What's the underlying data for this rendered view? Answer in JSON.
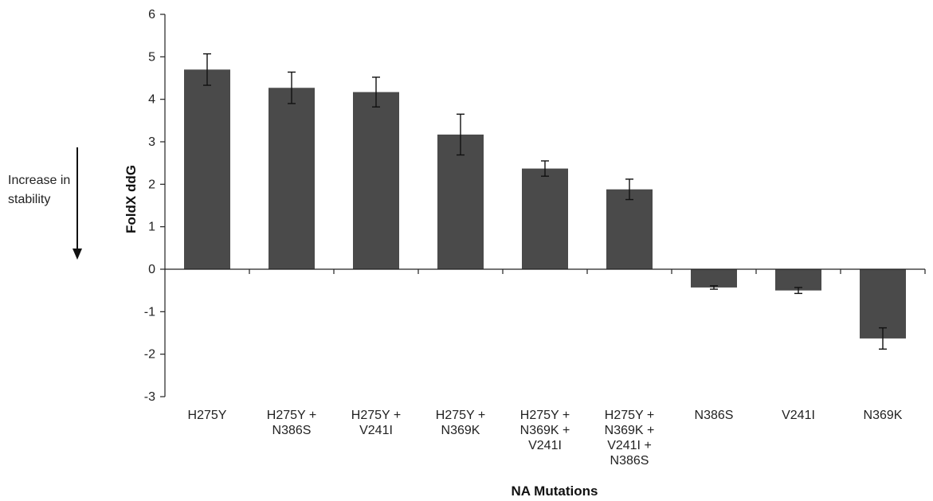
{
  "chart_data": {
    "type": "bar",
    "categories": [
      [
        "H275Y"
      ],
      [
        "H275Y +",
        "N386S"
      ],
      [
        "H275Y +",
        "V241I"
      ],
      [
        "H275Y +",
        "N369K"
      ],
      [
        "H275Y +",
        "N369K +",
        "V241I"
      ],
      [
        "H275Y +",
        "N369K +",
        "V241I +",
        "N386S"
      ],
      [
        "N386S"
      ],
      [
        "V241I"
      ],
      [
        "N369K"
      ]
    ],
    "values": [
      4.7,
      4.27,
      4.17,
      3.17,
      2.37,
      1.88,
      -0.43,
      -0.5,
      -1.63
    ],
    "error": [
      0.37,
      0.37,
      0.35,
      0.48,
      0.18,
      0.24,
      0.04,
      0.07,
      0.25
    ],
    "ylabel": "FoldX ddG",
    "xlabel": "NA Mutations",
    "ylim": [
      -3,
      6
    ],
    "yticks": [
      -3,
      -2,
      -1,
      0,
      1,
      2,
      3,
      4,
      5,
      6
    ],
    "grid": false,
    "bar_color": "#4a4a4a",
    "annotation": {
      "lines": [
        "Increase in",
        "stability"
      ],
      "arrow": "down"
    }
  }
}
